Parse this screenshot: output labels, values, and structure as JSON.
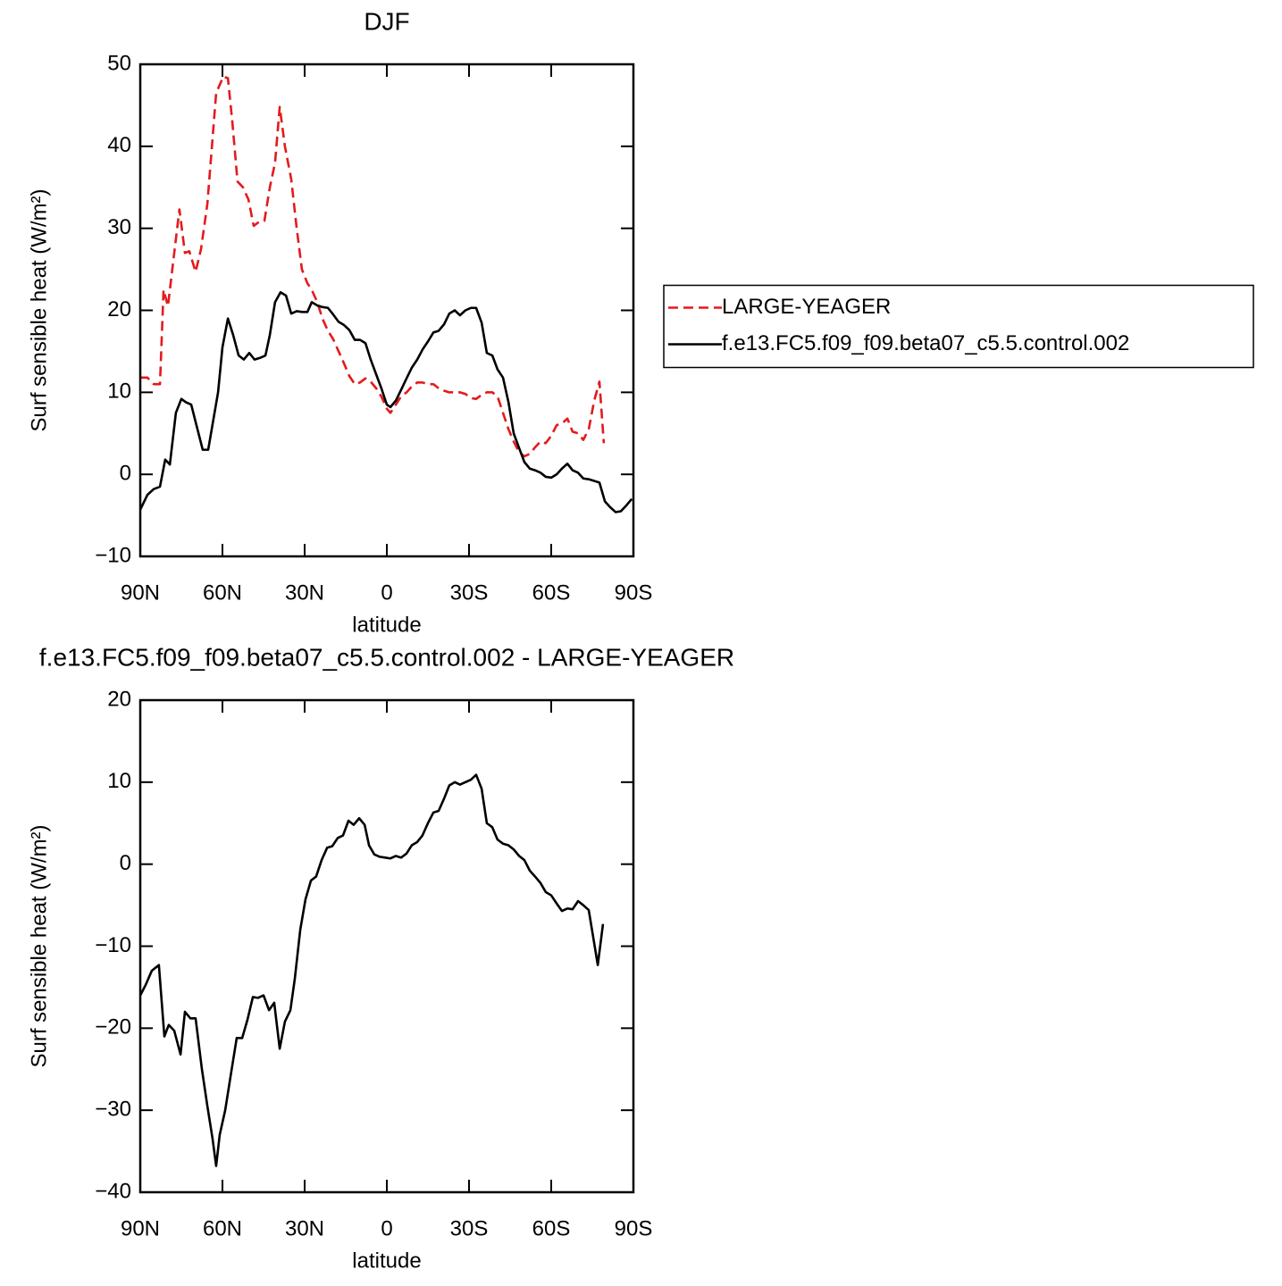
{
  "chart_data": [
    {
      "type": "line",
      "title": "DJF",
      "xlabel": "latitude",
      "ylabel": "Surf sensible heat (W/m²)",
      "xlim": [
        90,
        -90
      ],
      "xticks": [
        {
          "value": 90,
          "label": "90N"
        },
        {
          "value": 60,
          "label": "60N"
        },
        {
          "value": 30,
          "label": "30N"
        },
        0,
        {
          "value": -30,
          "label": "30S"
        },
        {
          "value": -60,
          "label": "60S"
        },
        {
          "value": -90,
          "label": "90S"
        }
      ],
      "ylim": [
        -10,
        50
      ],
      "yticks": [
        {
          "value": -10,
          "label": "−10"
        },
        0,
        10,
        20,
        30,
        40,
        50
      ],
      "legend": "right",
      "series": [
        {
          "name": "LARGE-YEAGER",
          "color": "#e41a1c",
          "dash": true,
          "x": [
            90,
            87.4,
            85.1,
            82.8,
            81.5,
            79.9,
            77.6,
            75.7,
            73.7,
            72.1,
            69.8,
            67.8,
            65.5,
            62.3,
            59.7,
            58.0,
            56.4,
            54.5,
            52.5,
            50.5,
            48.6,
            46.6,
            44.7,
            42.7,
            40.8,
            39.1,
            37.2,
            34.9,
            32.9,
            31.0,
            29.0,
            27.4,
            25.4,
            23.5,
            21.5,
            19.6,
            17.6,
            15.6,
            13.7,
            11.7,
            9.8,
            7.8,
            5.9,
            3.9,
            2.0,
            0.0,
            -1.3,
            -3.3,
            -5.2,
            -7.2,
            -9.1,
            -11.1,
            -13.0,
            -15.0,
            -17.0,
            -18.9,
            -20.9,
            -22.8,
            -24.8,
            -26.7,
            -28.7,
            -30.7,
            -32.6,
            -34.6,
            -36.5,
            -38.5,
            -40.4,
            -42.4,
            -44.4,
            -46.3,
            -48.3,
            -50.2,
            -52.2,
            -54.1,
            -56.1,
            -58.0,
            -60.0,
            -62.0,
            -63.9,
            -65.9,
            -67.8,
            -69.8,
            -71.7,
            -73.7,
            -75.7,
            -77.6,
            -79.2
          ],
          "values": [
            11.8,
            11.8,
            11,
            11,
            22.5,
            20.5,
            27,
            32.3,
            27,
            27.2,
            24.7,
            27.5,
            33,
            46.5,
            48.5,
            48.3,
            43,
            35.7,
            35,
            33.5,
            30.3,
            30.8,
            30.9,
            35,
            38,
            44.8,
            40,
            36,
            30,
            25,
            23.3,
            22.5,
            21,
            19,
            17.5,
            16.5,
            15,
            13.5,
            12,
            11,
            11.2,
            11.7,
            11.3,
            10.5,
            9.5,
            8,
            7.5,
            8.5,
            9.5,
            10,
            10.7,
            11.2,
            11.2,
            11,
            11,
            10.5,
            10.2,
            10,
            10,
            10,
            9.8,
            9.3,
            9.2,
            9.7,
            10,
            10,
            9.5,
            7.5,
            5.5,
            4,
            2.7,
            2.2,
            2.5,
            3.3,
            4,
            3.8,
            4.7,
            6,
            6.2,
            6.8,
            5.2,
            5,
            4.2,
            5.5,
            9,
            11.3,
            3.8
          ]
        },
        {
          "name": "f.e13.FC5.f09_f09.beta07_c5.5.control.002",
          "color": "#000000",
          "dash": false,
          "x": [
            90,
            87.4,
            85.1,
            82.8,
            80.9,
            79.2,
            77.0,
            75.0,
            73.4,
            71.4,
            69.5,
            67.2,
            65.2,
            63.3,
            61.6,
            60.0,
            58.0,
            56.1,
            54.1,
            52.2,
            50.2,
            48.3,
            46.3,
            44.3,
            42.7,
            40.8,
            38.8,
            36.8,
            34.9,
            32.9,
            31.0,
            29.0,
            27.4,
            25.4,
            23.5,
            21.5,
            19.6,
            17.6,
            15.6,
            13.7,
            11.7,
            9.8,
            7.8,
            5.9,
            3.9,
            2.0,
            0.0,
            -1.3,
            -3.3,
            -5.2,
            -7.2,
            -9.1,
            -11.1,
            -13.0,
            -15.0,
            -17.0,
            -18.9,
            -20.9,
            -22.8,
            -24.8,
            -26.7,
            -28.7,
            -30.7,
            -32.6,
            -34.6,
            -36.5,
            -38.5,
            -40.4,
            -42.4,
            -44.4,
            -46.3,
            -48.3,
            -50.2,
            -52.2,
            -54.1,
            -56.1,
            -58.0,
            -60.0,
            -62.0,
            -63.9,
            -65.9,
            -67.8,
            -69.8,
            -71.7,
            -73.7,
            -75.7,
            -77.6,
            -79.6,
            -81.5,
            -83.5,
            -85.4,
            -87.4,
            -89.4
          ],
          "values": [
            -4.3,
            -2.5,
            -1.8,
            -1.5,
            1.8,
            1.2,
            7.5,
            9.2,
            8.8,
            8.5,
            6,
            3,
            3,
            6.7,
            10,
            15.5,
            19,
            17,
            14.5,
            14,
            14.8,
            14,
            14.2,
            14.5,
            17,
            21,
            22.2,
            21.8,
            19.6,
            19.9,
            19.8,
            19.8,
            21,
            20.6,
            20.4,
            20.3,
            19.5,
            18.6,
            18.2,
            17.6,
            16.4,
            16.4,
            16,
            14,
            12.2,
            10.5,
            8.5,
            8.2,
            9,
            10.3,
            11.7,
            13,
            14,
            15.2,
            16.2,
            17.3,
            17.5,
            18.3,
            19.6,
            20,
            19.4,
            20,
            20.3,
            20.3,
            18.5,
            14.8,
            14.5,
            12.8,
            11.8,
            8.8,
            5,
            3.2,
            1.5,
            0.7,
            0.5,
            0.2,
            -0.3,
            -0.4,
            0,
            0.7,
            1.3,
            0.5,
            0.2,
            -0.5,
            -0.6,
            -0.8,
            -1,
            -3.3,
            -4,
            -4.6,
            -4.5,
            -3.8,
            -3
          ]
        }
      ]
    },
    {
      "type": "line",
      "title": "f.e13.FC5.f09_f09.beta07_c5.5.control.002 - LARGE-YEAGER",
      "xlabel": "latitude",
      "ylabel": "Surf sensible heat (W/m²)",
      "xlim": [
        90,
        -90
      ],
      "xticks": [
        {
          "value": 90,
          "label": "90N"
        },
        {
          "value": 60,
          "label": "60N"
        },
        {
          "value": 30,
          "label": "30N"
        },
        0,
        {
          "value": -30,
          "label": "30S"
        },
        {
          "value": -60,
          "label": "60S"
        },
        {
          "value": -90,
          "label": "90S"
        }
      ],
      "ylim": [
        -40,
        20
      ],
      "yticks": [
        {
          "value": -40,
          "label": "−40"
        },
        {
          "value": -30,
          "label": "−30"
        },
        {
          "value": -20,
          "label": "−20"
        },
        {
          "value": -10,
          "label": "−10"
        },
        0,
        10,
        20
      ],
      "series": [
        {
          "color": "#000000",
          "dash": false,
          "x": [
            90,
            88.0,
            85.8,
            83.2,
            81.2,
            79.6,
            77.6,
            75.3,
            73.7,
            71.7,
            69.8,
            67.5,
            65.5,
            63.6,
            62.3,
            61.0,
            59.0,
            57.1,
            54.8,
            52.8,
            50.9,
            48.9,
            47.0,
            45.0,
            43.0,
            41.1,
            39.1,
            37.2,
            35.2,
            33.6,
            31.6,
            29.7,
            27.7,
            25.8,
            23.8,
            21.8,
            19.9,
            17.9,
            16.0,
            14.0,
            12.1,
            10.1,
            8.1,
            6.5,
            4.6,
            2.6,
            0.6,
            -1.3,
            -3.3,
            -5.2,
            -7.2,
            -9.1,
            -11.1,
            -13.0,
            -15.0,
            -17.0,
            -18.9,
            -20.9,
            -22.8,
            -24.8,
            -26.7,
            -28.7,
            -30.7,
            -32.6,
            -34.6,
            -36.5,
            -38.5,
            -40.4,
            -42.4,
            -44.4,
            -46.3,
            -48.3,
            -50.2,
            -52.2,
            -54.1,
            -56.1,
            -58.0,
            -60.0,
            -62.0,
            -63.9,
            -65.9,
            -67.8,
            -69.8,
            -71.7,
            -73.7,
            -77.0,
            -78.9
          ],
          "values": [
            -16,
            -14.7,
            -13,
            -12.3,
            -21,
            -19.6,
            -20.3,
            -23.2,
            -18,
            -18.8,
            -18.8,
            -25,
            -29.5,
            -33.5,
            -36.8,
            -33,
            -30,
            -26,
            -21.2,
            -21.2,
            -19,
            -16.2,
            -16.3,
            -16,
            -17.8,
            -16.9,
            -22.5,
            -19.2,
            -17.8,
            -14,
            -8,
            -4.3,
            -2,
            -1.5,
            0.5,
            2,
            2.2,
            3.2,
            3.5,
            5.3,
            4.8,
            5.6,
            4.8,
            2.3,
            1.2,
            0.9,
            0.8,
            0.7,
            1,
            0.8,
            1.3,
            2.3,
            2.7,
            3.5,
            5,
            6.3,
            6.5,
            8,
            9.6,
            10,
            9.7,
            10,
            10.3,
            10.9,
            9.2,
            5,
            4.5,
            3,
            2.5,
            2.3,
            1.8,
            1,
            0.5,
            -0.8,
            -1.5,
            -2.3,
            -3.4,
            -3.8,
            -4.8,
            -5.7,
            -5.4,
            -5.5,
            -4.5,
            -5,
            -5.6,
            -12.3,
            -7.3
          ]
        }
      ]
    }
  ]
}
